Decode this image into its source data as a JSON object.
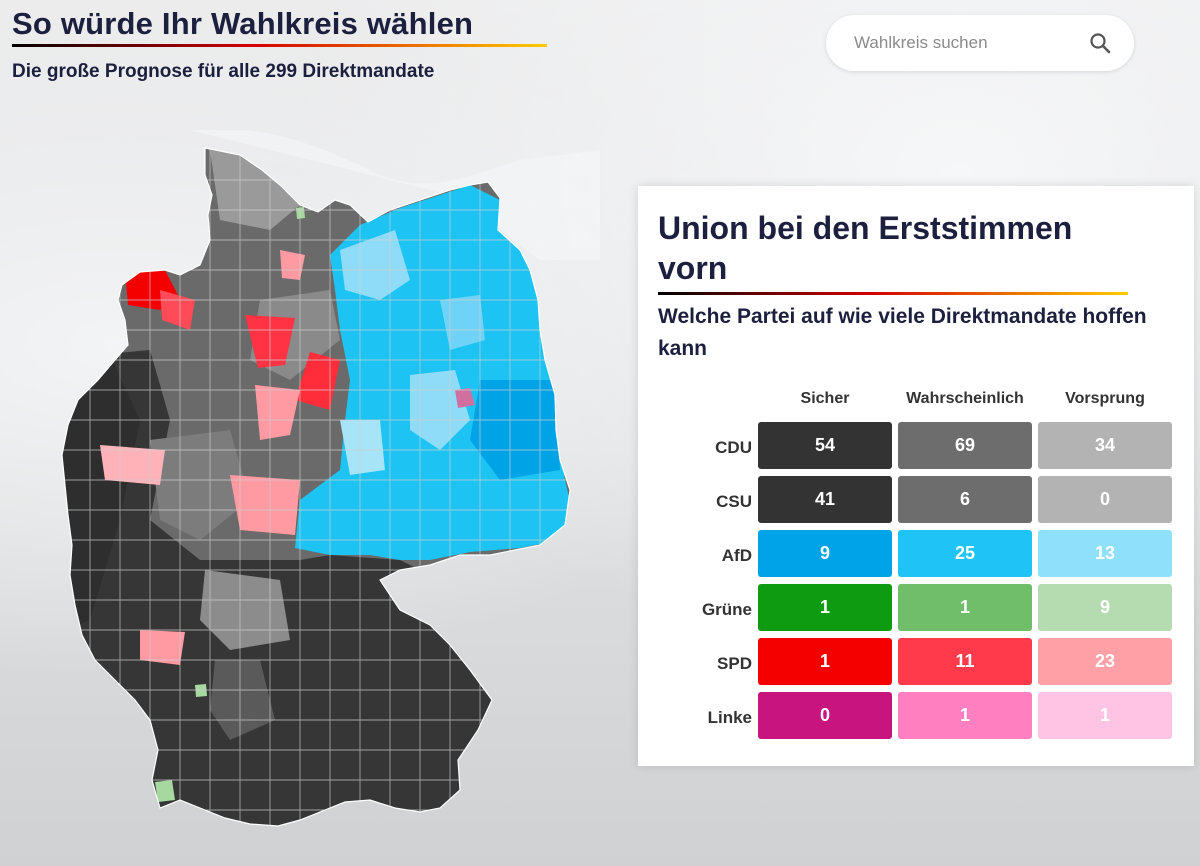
{
  "header": {
    "title": "So würde Ihr Wahlkreis wählen",
    "subtitle": "Die große Prognose für alle 299 Direktmandate"
  },
  "search": {
    "placeholder": "Wahlkreis suchen",
    "icon": "search-icon"
  },
  "map": {
    "region": "Deutschland",
    "legend_colors": {
      "union_sicher": "#323232",
      "union_wahrscheinlich": "#707070",
      "union_vorsprung": "#b0b0b0",
      "afd_sicher": "#00a0e6",
      "afd_wahrscheinlich": "#2dc5f4",
      "afd_vorsprung": "#8fdcf8",
      "gruene": "#8fcf8f",
      "spd_sicher": "#ff0000",
      "spd_wahrscheinlich": "#ff4050",
      "spd_vorsprung": "#ff9aa2",
      "linke": "#e0408a"
    }
  },
  "panel": {
    "title": "Union bei den Erststimmen vorn",
    "subtitle": "Welche Partei auf wie viele Direktmandate hoffen kann",
    "columns": [
      "Sicher",
      "Wahrscheinlich",
      "Vorsprung"
    ],
    "rows": [
      {
        "party": "CDU",
        "values": [
          "54",
          "69",
          "34"
        ],
        "colors": [
          "#333333",
          "#6d6d6d",
          "#b3b3b3"
        ]
      },
      {
        "party": "CSU",
        "values": [
          "41",
          "6",
          "0"
        ],
        "colors": [
          "#333333",
          "#6d6d6d",
          "#b3b3b3"
        ]
      },
      {
        "party": "AfD",
        "values": [
          "9",
          "25",
          "13"
        ],
        "colors": [
          "#00a3e8",
          "#1fc3f5",
          "#8ee0fb"
        ]
      },
      {
        "party": "Grüne",
        "values": [
          "1",
          "1",
          "9"
        ],
        "colors": [
          "#0e9b12",
          "#70bd6a",
          "#b5dbb0"
        ]
      },
      {
        "party": "SPD",
        "values": [
          "1",
          "11",
          "23"
        ],
        "colors": [
          "#f50000",
          "#ff3a4b",
          "#ffa0a6"
        ]
      },
      {
        "party": "Linke",
        "values": [
          "0",
          "1",
          "1"
        ],
        "colors": [
          "#c8147f",
          "#ff7fc0",
          "#ffc3e3"
        ]
      }
    ]
  }
}
